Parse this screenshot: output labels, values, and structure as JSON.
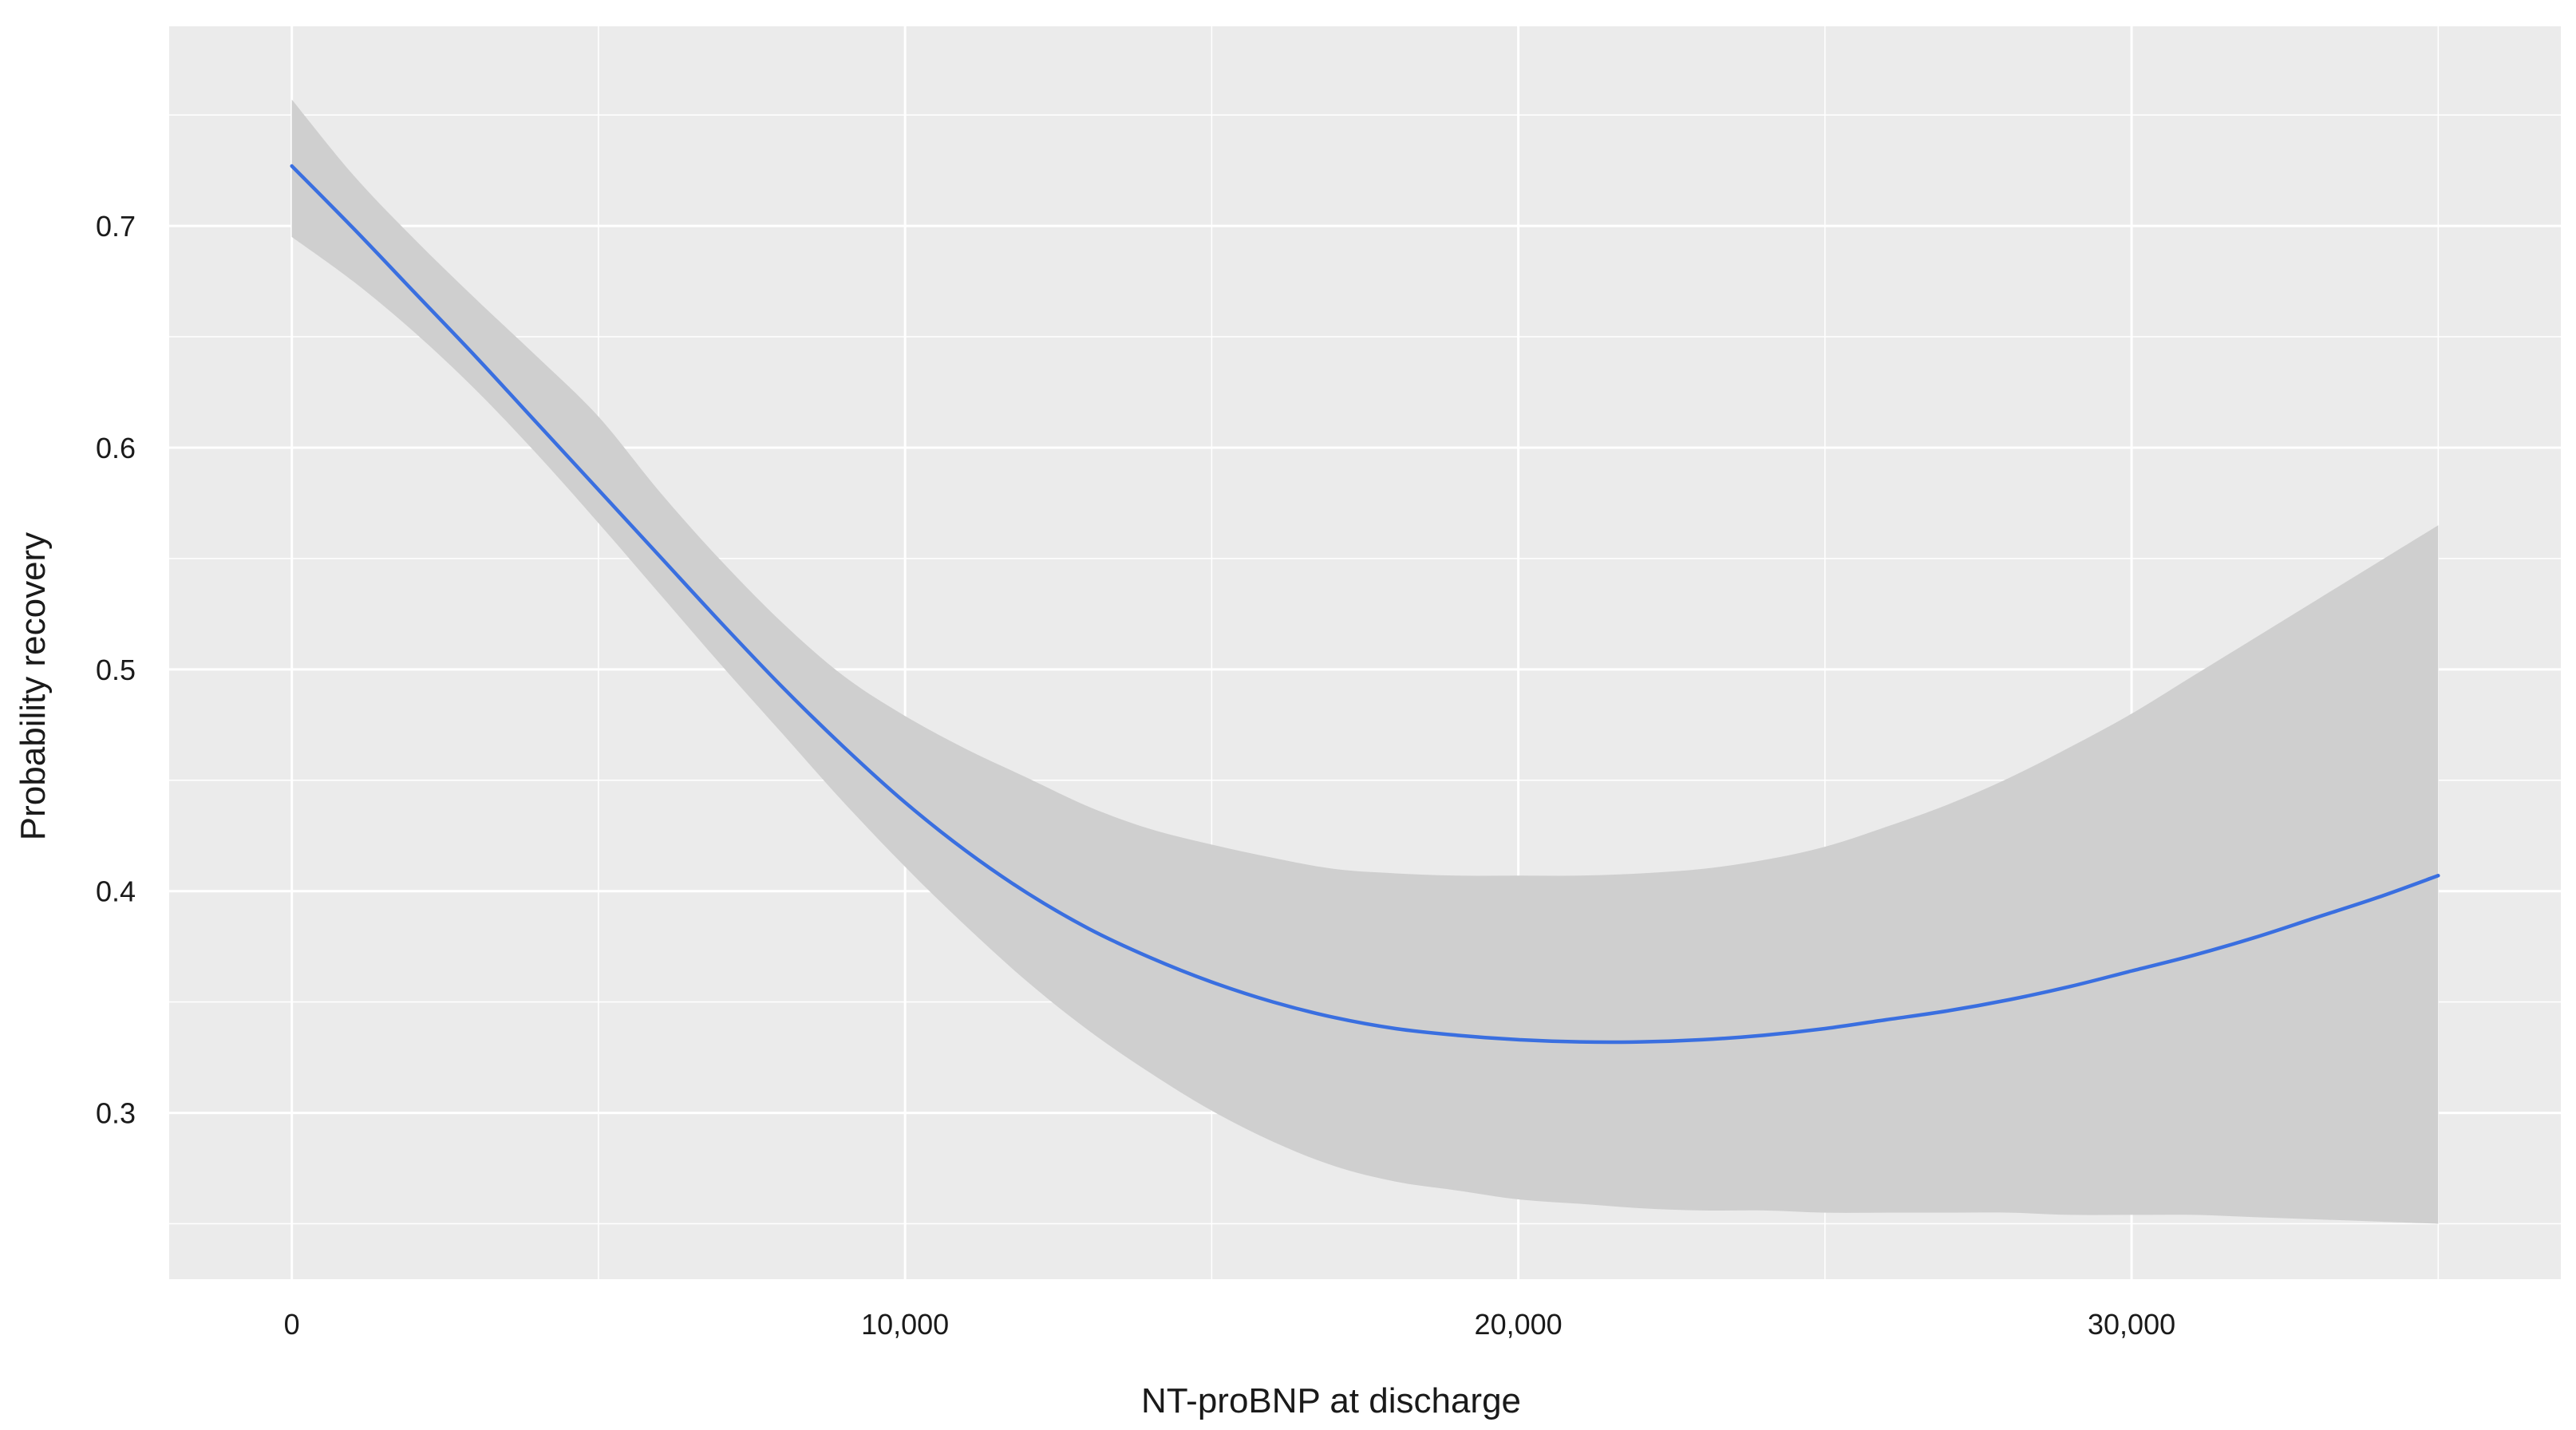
{
  "chart_data": {
    "type": "line",
    "title": "",
    "xlabel": "NT-proBNP at discharge",
    "ylabel": "Probability recovery",
    "xlim": [
      -2000,
      37000
    ],
    "ylim": [
      0.225,
      0.79
    ],
    "x_ticks": [
      0,
      10000,
      20000,
      30000
    ],
    "x_tick_labels": [
      "0",
      "10,000",
      "20,000",
      "30,000"
    ],
    "y_ticks": [
      0.3,
      0.4,
      0.5,
      0.6,
      0.7
    ],
    "y_tick_labels": [
      "0.3",
      "0.4",
      "0.5",
      "0.6",
      "0.7"
    ],
    "grid": true,
    "colors": {
      "panel_background": "#ebebeb",
      "grid_line": "#ffffff",
      "ribbon": "#cfcfcf",
      "line": "#3a6fe0"
    },
    "series": [
      {
        "x": [
          0,
          1000,
          2000,
          3000,
          4000,
          5000,
          6000,
          7000,
          8000,
          9000,
          10000,
          11000,
          12000,
          13000,
          14000,
          15000,
          16000,
          17000,
          18000,
          19000,
          20000,
          21000,
          22000,
          23000,
          24000,
          25000,
          26000,
          27000,
          28000,
          29000,
          30000,
          31000,
          32000,
          33000,
          34000,
          35000
        ],
        "y": [
          0.727,
          0.699,
          0.67,
          0.641,
          0.611,
          0.581,
          0.551,
          0.521,
          0.492,
          0.465,
          0.44,
          0.418,
          0.399,
          0.383,
          0.37,
          0.359,
          0.35,
          0.343,
          0.338,
          0.335,
          0.333,
          0.332,
          0.332,
          0.333,
          0.335,
          0.338,
          0.342,
          0.346,
          0.351,
          0.357,
          0.364,
          0.371,
          0.379,
          0.388,
          0.397,
          0.407
        ],
        "lower": [
          0.695,
          0.675,
          0.652,
          0.626,
          0.597,
          0.566,
          0.534,
          0.502,
          0.471,
          0.44,
          0.411,
          0.384,
          0.359,
          0.337,
          0.318,
          0.301,
          0.287,
          0.276,
          0.269,
          0.265,
          0.261,
          0.259,
          0.257,
          0.256,
          0.256,
          0.255,
          0.255,
          0.255,
          0.255,
          0.254,
          0.254,
          0.254,
          0.253,
          0.252,
          0.251,
          0.25
        ],
        "upper": [
          0.757,
          0.723,
          0.694,
          0.667,
          0.641,
          0.614,
          0.58,
          0.549,
          0.521,
          0.497,
          0.479,
          0.464,
          0.451,
          0.438,
          0.428,
          0.421,
          0.415,
          0.41,
          0.408,
          0.407,
          0.407,
          0.407,
          0.408,
          0.41,
          0.414,
          0.42,
          0.429,
          0.439,
          0.451,
          0.465,
          0.48,
          0.497,
          0.514,
          0.531,
          0.548,
          0.565
        ]
      }
    ]
  }
}
